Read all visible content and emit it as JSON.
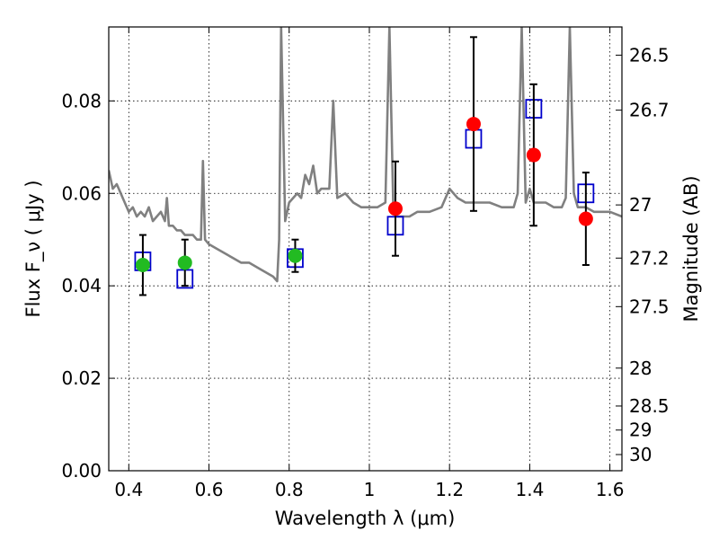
{
  "chart_data": {
    "type": "scatter",
    "title": "",
    "xlabel": "Wavelength  λ (μm)",
    "ylabel": "Flux  F_ν  ( μJy )",
    "ylabel_right": "Magnitude (AB)",
    "xlim": [
      0.35,
      1.63
    ],
    "ylim": [
      0.0,
      0.096
    ],
    "grid": true,
    "x_ticks": [
      0.4,
      0.6,
      0.8,
      1.0,
      1.2,
      1.4,
      1.6
    ],
    "x_tick_labels": [
      "0.4",
      "0.6",
      "0.8",
      "1",
      "1.2",
      "1.4",
      "1.6"
    ],
    "y_ticks": [
      0.0,
      0.02,
      0.04,
      0.06,
      0.08
    ],
    "y_tick_labels": [
      "0.00",
      "0.02",
      "0.04",
      "0.06",
      "0.08"
    ],
    "right_axis_ticks": [
      {
        "label": "26.5",
        "flux": 0.0899
      },
      {
        "label": "26.7",
        "flux": 0.078
      },
      {
        "label": "27",
        "flux": 0.0575
      },
      {
        "label": "27.2",
        "flux": 0.046
      },
      {
        "label": "27.5",
        "flux": 0.0355
      },
      {
        "label": "28",
        "flux": 0.0222
      },
      {
        "label": "28.5",
        "flux": 0.014
      },
      {
        "label": "29",
        "flux": 0.0088
      },
      {
        "label": "30",
        "flux": 0.0035
      }
    ],
    "series": [
      {
        "kind": "model-spectrum",
        "color": "#808080",
        "x": [
          0.35,
          0.36,
          0.37,
          0.38,
          0.39,
          0.4,
          0.41,
          0.42,
          0.43,
          0.44,
          0.45,
          0.46,
          0.47,
          0.48,
          0.49,
          0.495,
          0.5,
          0.51,
          0.52,
          0.53,
          0.54,
          0.55,
          0.56,
          0.57,
          0.58,
          0.585,
          0.59,
          0.6,
          0.62,
          0.64,
          0.66,
          0.68,
          0.7,
          0.72,
          0.74,
          0.76,
          0.77,
          0.775,
          0.78,
          0.79,
          0.8,
          0.81,
          0.82,
          0.83,
          0.84,
          0.85,
          0.86,
          0.87,
          0.88,
          0.9,
          0.91,
          0.92,
          0.94,
          0.96,
          0.98,
          1.0,
          1.02,
          1.04,
          1.05,
          1.06,
          1.07,
          1.08,
          1.1,
          1.12,
          1.15,
          1.18,
          1.2,
          1.22,
          1.24,
          1.26,
          1.28,
          1.3,
          1.33,
          1.36,
          1.37,
          1.38,
          1.39,
          1.4,
          1.41,
          1.42,
          1.44,
          1.46,
          1.48,
          1.49,
          1.5,
          1.51,
          1.52,
          1.54,
          1.56,
          1.58,
          1.6,
          1.63
        ],
        "y": [
          0.065,
          0.061,
          0.062,
          0.06,
          0.058,
          0.056,
          0.057,
          0.055,
          0.056,
          0.055,
          0.057,
          0.054,
          0.055,
          0.056,
          0.054,
          0.059,
          0.053,
          0.053,
          0.052,
          0.052,
          0.051,
          0.051,
          0.051,
          0.05,
          0.05,
          0.067,
          0.05,
          0.049,
          0.048,
          0.047,
          0.046,
          0.045,
          0.045,
          0.044,
          0.043,
          0.042,
          0.041,
          0.05,
          0.096,
          0.054,
          0.058,
          0.059,
          0.06,
          0.059,
          0.064,
          0.062,
          0.066,
          0.06,
          0.061,
          0.061,
          0.08,
          0.059,
          0.06,
          0.058,
          0.057,
          0.057,
          0.057,
          0.058,
          0.096,
          0.056,
          0.055,
          0.055,
          0.055,
          0.056,
          0.056,
          0.057,
          0.061,
          0.059,
          0.058,
          0.058,
          0.058,
          0.058,
          0.057,
          0.057,
          0.06,
          0.096,
          0.058,
          0.061,
          0.058,
          0.058,
          0.058,
          0.057,
          0.057,
          0.059,
          0.096,
          0.06,
          0.057,
          0.057,
          0.056,
          0.056,
          0.056,
          0.055
        ]
      },
      {
        "kind": "model-points",
        "marker": "open-square",
        "color": "#0000cc",
        "x": [
          0.435,
          0.54,
          0.815,
          1.065,
          1.26,
          1.41,
          1.54
        ],
        "y": [
          0.0453,
          0.0415,
          0.046,
          0.053,
          0.0718,
          0.0783,
          0.06
        ]
      },
      {
        "kind": "observed-points",
        "marker": "filled-circle",
        "color": "#22bb22",
        "x": [
          0.435,
          0.54,
          0.815
        ],
        "y": [
          0.0445,
          0.045,
          0.0465
        ],
        "err": [
          0.0065,
          0.005,
          0.0035
        ]
      },
      {
        "kind": "observed-points",
        "marker": "filled-circle",
        "color": "#ff0000",
        "x": [
          1.065,
          1.26,
          1.41,
          1.54
        ],
        "y": [
          0.0567,
          0.075,
          0.0683,
          0.0545
        ],
        "err": [
          0.0102,
          0.0188,
          0.0153,
          0.01
        ]
      }
    ]
  }
}
